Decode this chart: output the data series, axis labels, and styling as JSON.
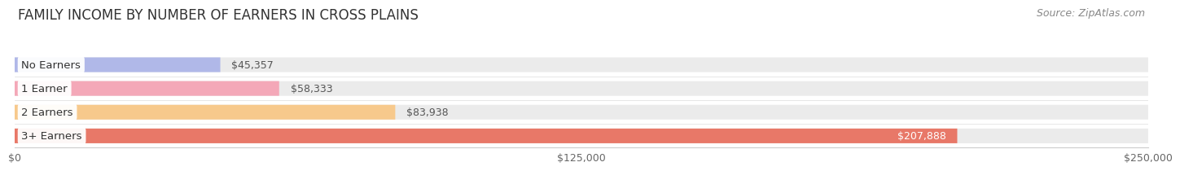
{
  "title": "FAMILY INCOME BY NUMBER OF EARNERS IN CROSS PLAINS",
  "source": "Source: ZipAtlas.com",
  "categories": [
    "No Earners",
    "1 Earner",
    "2 Earners",
    "3+ Earners"
  ],
  "values": [
    45357,
    58333,
    83938,
    207888
  ],
  "bar_colors": [
    "#b0b8e8",
    "#f4a8b8",
    "#f7c98c",
    "#e87868"
  ],
  "bar_bg_color": "#ebebeb",
  "value_label_colors": [
    "#555555",
    "#555555",
    "#555555",
    "#ffffff"
  ],
  "xlim": [
    0,
    250000
  ],
  "xticks": [
    0,
    125000,
    250000
  ],
  "xtick_labels": [
    "$0",
    "$125,000",
    "$250,000"
  ],
  "title_fontsize": 12,
  "source_fontsize": 9,
  "value_label_fontsize": 9,
  "category_fontsize": 9.5,
  "background_color": "#ffffff",
  "bar_height": 0.62,
  "fig_width": 14.06,
  "fig_height": 2.33
}
